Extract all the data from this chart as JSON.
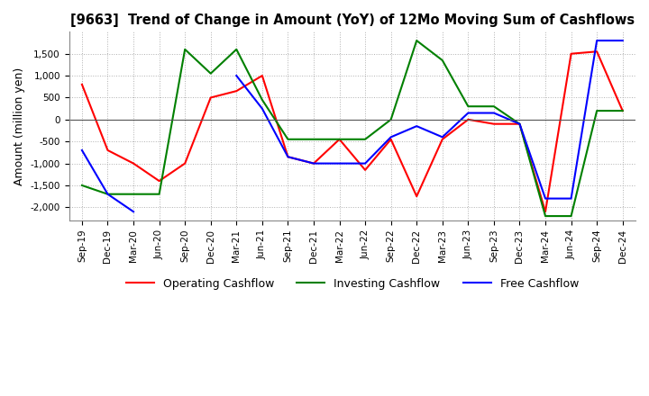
{
  "title": "[9663]  Trend of Change in Amount (YoY) of 12Mo Moving Sum of Cashflows",
  "ylabel": "Amount (million yen)",
  "x_labels": [
    "Sep-19",
    "Dec-19",
    "Mar-20",
    "Jun-20",
    "Sep-20",
    "Dec-20",
    "Mar-21",
    "Jun-21",
    "Sep-21",
    "Dec-21",
    "Mar-22",
    "Jun-22",
    "Sep-22",
    "Dec-22",
    "Mar-23",
    "Jun-23",
    "Sep-23",
    "Dec-23",
    "Mar-24",
    "Jun-24",
    "Sep-24",
    "Dec-24"
  ],
  "operating": [
    800,
    -700,
    -1000,
    -1400,
    -1000,
    500,
    650,
    1000,
    -850,
    -1000,
    -450,
    -1150,
    -450,
    -1750,
    -450,
    0,
    -100,
    -100,
    -2100,
    1500,
    1550,
    200
  ],
  "investing": [
    -1500,
    -1700,
    -1700,
    -1700,
    1600,
    1050,
    1600,
    450,
    -450,
    -450,
    -450,
    -450,
    0,
    1800,
    1350,
    300,
    300,
    -100,
    -2200,
    -2200,
    200,
    200
  ],
  "free": [
    -700,
    -1700,
    -2100,
    null,
    null,
    null,
    1000,
    250,
    -850,
    -1000,
    -1000,
    -1000,
    -400,
    -150,
    -400,
    150,
    150,
    -100,
    -1800,
    -1800,
    1800,
    1800
  ],
  "ylim": [
    -2300,
    2000
  ],
  "yticks": [
    -2000,
    -1500,
    -1000,
    -500,
    0,
    500,
    1000,
    1500
  ],
  "colors": {
    "operating": "#ff0000",
    "investing": "#008000",
    "free": "#0000ff"
  },
  "legend_labels": [
    "Operating Cashflow",
    "Investing Cashflow",
    "Free Cashflow"
  ],
  "background_color": "#ffffff",
  "grid_color": "#b0b0b0"
}
